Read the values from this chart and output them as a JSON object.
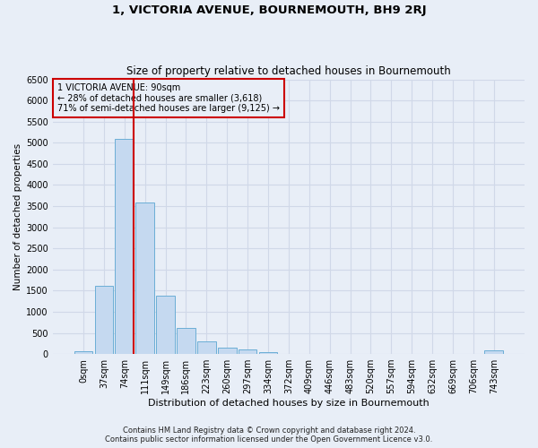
{
  "title": "1, VICTORIA AVENUE, BOURNEMOUTH, BH9 2RJ",
  "subtitle": "Size of property relative to detached houses in Bournemouth",
  "xlabel": "Distribution of detached houses by size in Bournemouth",
  "ylabel": "Number of detached properties",
  "footer_line1": "Contains HM Land Registry data © Crown copyright and database right 2024.",
  "footer_line2": "Contains public sector information licensed under the Open Government Licence v3.0.",
  "bar_labels": [
    "0sqm",
    "37sqm",
    "74sqm",
    "111sqm",
    "149sqm",
    "186sqm",
    "223sqm",
    "260sqm",
    "297sqm",
    "334sqm",
    "372sqm",
    "409sqm",
    "446sqm",
    "483sqm",
    "520sqm",
    "557sqm",
    "594sqm",
    "632sqm",
    "669sqm",
    "706sqm",
    "743sqm"
  ],
  "bar_values": [
    60,
    1620,
    5100,
    3580,
    1380,
    610,
    300,
    150,
    110,
    50,
    0,
    0,
    0,
    0,
    0,
    0,
    0,
    0,
    0,
    0,
    90
  ],
  "bar_color": "#c5d9f0",
  "bar_edge_color": "#6baed6",
  "pct_smaller": 28,
  "count_smaller": 3618,
  "pct_semi_larger": 71,
  "count_semi_larger": 9125,
  "ylim": [
    0,
    6500
  ],
  "yticks": [
    0,
    500,
    1000,
    1500,
    2000,
    2500,
    3000,
    3500,
    4000,
    4500,
    5000,
    5500,
    6000,
    6500
  ],
  "background_color": "#e8eef7",
  "grid_color": "#d0d8e8",
  "annotation_box_color": "#cc0000",
  "vline_color": "#cc0000",
  "title_fontsize": 9.5,
  "subtitle_fontsize": 8.5,
  "xlabel_fontsize": 8,
  "ylabel_fontsize": 7.5,
  "tick_fontsize": 7,
  "annot_fontsize": 7,
  "footer_fontsize": 6
}
